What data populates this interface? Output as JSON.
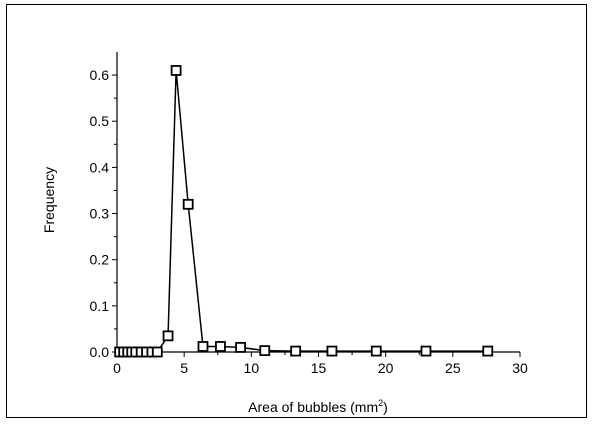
{
  "chart_data": {
    "type": "line",
    "x_label": "Area of bubbles (mm",
    "x_label_sup": "2",
    "x_label_end": ")",
    "y_label": "Frequency",
    "x": [
      0.2,
      0.5,
      0.8,
      1.1,
      1.4,
      1.8,
      2.2,
      2.6,
      3.0,
      3.8,
      4.4,
      5.3,
      6.4,
      7.7,
      9.2,
      11.0,
      13.3,
      16.0,
      19.3,
      23.0,
      27.6
    ],
    "series": [
      {
        "name": "Frequency",
        "color": "#000000",
        "values": [
          0,
          0,
          0,
          0,
          0,
          0,
          0,
          0,
          0,
          0.035,
          0.61,
          0.32,
          0.012,
          0.012,
          0.01,
          0.003,
          0.002,
          0.002,
          0.002,
          0.002,
          0.002
        ]
      }
    ],
    "xlim": [
      0,
      30
    ],
    "xticks": [
      0,
      5,
      10,
      15,
      20,
      25,
      30
    ],
    "xminorticks": [
      2.5,
      7.5,
      12.5,
      17.5,
      22.5,
      27.5
    ],
    "ylim": [
      0,
      0.65
    ],
    "yticks": [
      {
        "value": 0,
        "label": "0.0"
      },
      0.1,
      0.2,
      0.3,
      0.4,
      0.5,
      0.6
    ],
    "yminorticks": [
      0.05,
      0.15,
      0.25,
      0.35,
      0.45,
      0.55
    ],
    "marker": "square"
  }
}
